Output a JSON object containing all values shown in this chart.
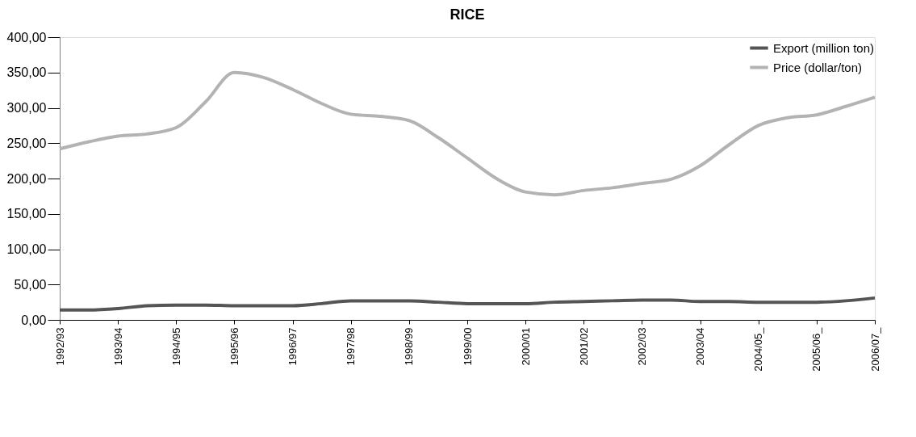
{
  "chart_data": {
    "type": "line",
    "title": "RICE",
    "categories": [
      "1992/93",
      null,
      "1993/94",
      null,
      "1994/95",
      null,
      "1995/96",
      null,
      "1996/97",
      null,
      "1997/98",
      null,
      "1998/99",
      null,
      "1999/00",
      null,
      "2000/01",
      null,
      "2001/02",
      null,
      "2002/03",
      null,
      "2003/04",
      null,
      "2004/05_",
      null,
      "2005/06_",
      null,
      "2006/07_"
    ],
    "series": [
      {
        "name": "Export (million ton)",
        "color": "#555555",
        "values": [
          14,
          14,
          16,
          20,
          21,
          21,
          20,
          20,
          20,
          23,
          27,
          27,
          27,
          25,
          23,
          23,
          23,
          25,
          26,
          27,
          28,
          28,
          26,
          26,
          25,
          25,
          25,
          27,
          31
        ]
      },
      {
        "name": "Price (dollar/ton)",
        "color": "#b3b3b3",
        "values": [
          242,
          252,
          260,
          263,
          272,
          308,
          350,
          343,
          326,
          306,
          291,
          288,
          282,
          258,
          229,
          200,
          181,
          177,
          183,
          187,
          193,
          199,
          218,
          248,
          275,
          286,
          290,
          302,
          315
        ]
      }
    ],
    "ylim": [
      0,
      400
    ],
    "yticks": [
      {
        "value": 0,
        "label": "0,00"
      },
      {
        "value": 50,
        "label": "50,00"
      },
      {
        "value": 100,
        "label": "100,00"
      },
      {
        "value": 150,
        "label": "150,00"
      },
      {
        "value": 200,
        "label": "200,00"
      },
      {
        "value": 250,
        "label": "250,00"
      },
      {
        "value": 300,
        "label": "300,00"
      },
      {
        "value": 350,
        "label": "350,00"
      },
      {
        "value": 400,
        "label": "400,00"
      }
    ],
    "legend": "top right",
    "grid": false,
    "marker": "none",
    "line_style": "solid"
  }
}
